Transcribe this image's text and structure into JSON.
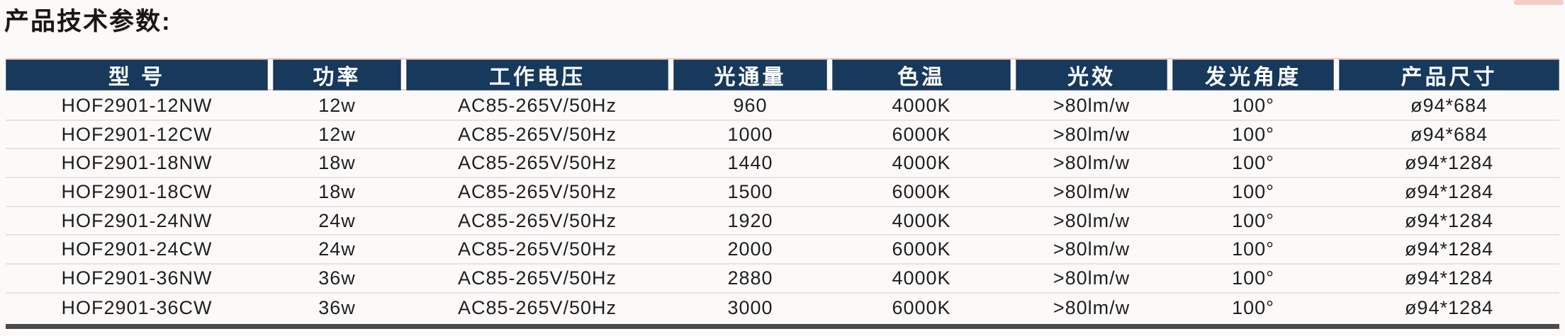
{
  "title": "产品技术参数:",
  "colors": {
    "page_bg": "#fcfaf9",
    "header_bg": "#16395c",
    "header_text": "#ffffff",
    "row_text": "#1f1f1f",
    "separator": "#e8e2e4",
    "bottom_bar": "#4a4a4a",
    "scan_tint": "#f2bdb4"
  },
  "table": {
    "headers": [
      "型 号",
      "功率",
      "工作电压",
      "光通量",
      "色温",
      "光效",
      "发光角度",
      "产品尺寸"
    ],
    "rows": [
      [
        "HOF2901-12NW",
        "12w",
        "AC85-265V/50Hz",
        "960",
        "4000K",
        ">80lm/w",
        "100°",
        "ø94*684"
      ],
      [
        "HOF2901-12CW",
        "12w",
        "AC85-265V/50Hz",
        "1000",
        "6000K",
        ">80lm/w",
        "100°",
        "ø94*684"
      ],
      [
        "HOF2901-18NW",
        "18w",
        "AC85-265V/50Hz",
        "1440",
        "4000K",
        ">80lm/w",
        "100°",
        "ø94*1284"
      ],
      [
        "HOF2901-18CW",
        "18w",
        "AC85-265V/50Hz",
        "1500",
        "6000K",
        ">80lm/w",
        "100°",
        "ø94*1284"
      ],
      [
        "HOF2901-24NW",
        "24w",
        "AC85-265V/50Hz",
        "1920",
        "4000K",
        ">80lm/w",
        "100°",
        "ø94*1284"
      ],
      [
        "HOF2901-24CW",
        "24w",
        "AC85-265V/50Hz",
        "2000",
        "6000K",
        ">80lm/w",
        "100°",
        "ø94*1284"
      ],
      [
        "HOF2901-36NW",
        "36w",
        "AC85-265V/50Hz",
        "2880",
        "4000K",
        ">80lm/w",
        "100°",
        "ø94*1284"
      ],
      [
        "HOF2901-36CW",
        "36w",
        "AC85-265V/50Hz",
        "3000",
        "6000K",
        ">80lm/w",
        "100°",
        "ø94*1284"
      ]
    ]
  }
}
